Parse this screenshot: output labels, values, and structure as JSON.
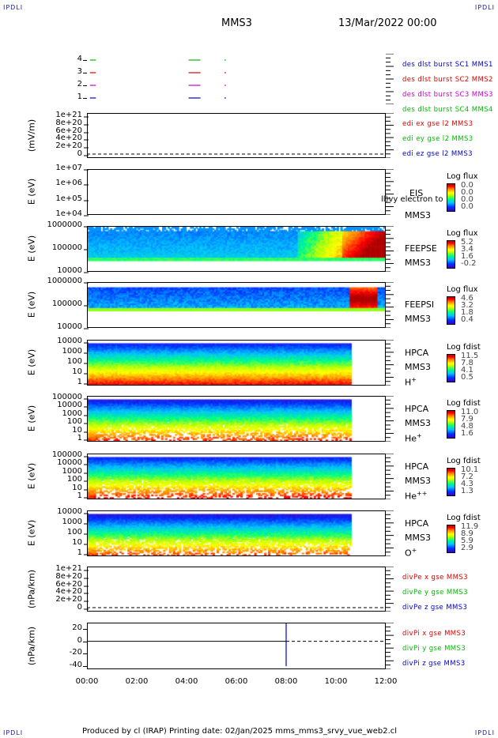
{
  "corners": {
    "tl": "IPDLI",
    "tr": "IPDLI",
    "bl": "IPDLI",
    "br": "IPDLI"
  },
  "header": {
    "mission": "MMS3",
    "date": "13/Mar/2022 00:00"
  },
  "footer": {
    "text": "Produced by cl (IRAP)   Printing date: 02/Jan/2025   mms_mms3_srvy_vue_web2.cl"
  },
  "colors": {
    "red": "#dd0000",
    "green": "#00bb00",
    "blue": "#0000cc",
    "magenta": "#cc00cc"
  },
  "chart_data": [
    {
      "type": "line",
      "panel": "burst",
      "ylim": [
        0.5,
        4.5
      ],
      "yticks": [
        "1",
        "2",
        "3",
        "4"
      ],
      "series": [
        {
          "name": "des dlst burst SC1 MMS1",
          "color": "#0000cc",
          "level": 1
        },
        {
          "name": "des dlst burst SC2 MMS2",
          "color": "#dd0000",
          "level": 3
        },
        {
          "name": "des dlst burst SC3 MMS3",
          "color": "#cc00cc",
          "level": 2
        },
        {
          "name": "des dlst burst SC4 MMS4",
          "color": "#00bb00",
          "level": 4
        }
      ]
    },
    {
      "type": "line",
      "panel": "edi",
      "ylabel": "(mV/m)",
      "yticks": [
        "1e+21",
        "8e+20",
        "6e+20",
        "4e+20",
        "2e+20",
        "0"
      ],
      "series": [
        {
          "name": "edi ex gse l2 MMS3",
          "color": "#dd0000"
        },
        {
          "name": "edi ey gse l2 MMS3",
          "color": "#00bb00"
        },
        {
          "name": "edi ez gse l2 MMS3",
          "color": "#0000cc"
        }
      ]
    },
    {
      "type": "heatmap",
      "panel": "eis",
      "ylabel": "E (eV)",
      "yticks": [
        "1e+07",
        "1e+06",
        "1e+05",
        "1e+04"
      ],
      "instrument": [
        "EIS",
        "MMS3"
      ],
      "overlay_text": "ll)vy electron to",
      "colorbar": {
        "title": "Log flux",
        "values": [
          "0.0",
          "0.0",
          "0.0",
          "0.0"
        ]
      }
    },
    {
      "type": "heatmap",
      "panel": "feepse",
      "ylabel": "E (eV)",
      "yticks": [
        "1000000",
        "100000",
        "10000"
      ],
      "instrument": [
        "FEEPSE",
        "MMS3"
      ],
      "colorbar": {
        "title": "Log flux",
        "values": [
          "5.2",
          "3.4",
          "1.6",
          "-0.2"
        ]
      }
    },
    {
      "type": "heatmap",
      "panel": "feepsi",
      "ylabel": "E (eV)",
      "yticks": [
        "1000000",
        "100000",
        "10000"
      ],
      "instrument": [
        "FEEPSI",
        "MMS3"
      ],
      "colorbar": {
        "title": "Log flux",
        "values": [
          "4.6",
          "3.2",
          "1.8",
          "0.4"
        ]
      }
    },
    {
      "type": "heatmap",
      "panel": "hpca_h",
      "ylabel": "E (eV)",
      "yticks": [
        "10000",
        "1000",
        "100",
        "10",
        "1"
      ],
      "instrument": [
        "HPCA",
        "MMS3",
        "H+"
      ],
      "colorbar": {
        "title": "Log fdist",
        "values": [
          "11.5",
          "7.8",
          "4.1",
          "0.5"
        ]
      }
    },
    {
      "type": "heatmap",
      "panel": "hpca_he",
      "ylabel": "E (eV)",
      "yticks": [
        "100000",
        "10000",
        "1000",
        "100",
        "10",
        "1"
      ],
      "instrument": [
        "HPCA",
        "MMS3",
        "He+"
      ],
      "colorbar": {
        "title": "Log fdist",
        "values": [
          "11.0",
          "7.9",
          "4.8",
          "1.6"
        ]
      }
    },
    {
      "type": "heatmap",
      "panel": "hpca_hepp",
      "ylabel": "E (eV)",
      "yticks": [
        "100000",
        "10000",
        "1000",
        "100",
        "10",
        "1"
      ],
      "instrument": [
        "HPCA",
        "MMS3",
        "He++"
      ],
      "colorbar": {
        "title": "Log fdist",
        "values": [
          "10.1",
          "7.2",
          "4.3",
          "1.3"
        ]
      }
    },
    {
      "type": "heatmap",
      "panel": "hpca_o",
      "ylabel": "E (eV)",
      "yticks": [
        "10000",
        "1000",
        "100",
        "10",
        "1"
      ],
      "instrument": [
        "HPCA",
        "MMS3",
        "O+"
      ],
      "colorbar": {
        "title": "Log fdist",
        "values": [
          "11.9",
          "8.9",
          "5.9",
          "2.9"
        ]
      }
    },
    {
      "type": "line",
      "panel": "divpe",
      "ylabel": "(nPa/km)",
      "yticks": [
        "1e+21",
        "8e+20",
        "6e+20",
        "4e+20",
        "2e+20",
        "0"
      ],
      "series": [
        {
          "name": "divPe x gse MMS3",
          "color": "#dd0000"
        },
        {
          "name": "divPe y gse MMS3",
          "color": "#00bb00"
        },
        {
          "name": "divPe z gse MMS3",
          "color": "#0000cc"
        }
      ]
    },
    {
      "type": "line",
      "panel": "divpi",
      "ylabel": "(nPa/km)",
      "ylim": [
        -45,
        30
      ],
      "yticks": [
        "20",
        "0",
        "-20",
        "-40"
      ],
      "series": [
        {
          "name": "divPi x gse MMS3",
          "color": "#dd0000"
        },
        {
          "name": "divPi y gse MMS3",
          "color": "#00bb00"
        },
        {
          "name": "divPi z gse MMS3",
          "color": "#0000cc",
          "spike_time": "08:00",
          "spike_range": [
            -40,
            30
          ]
        }
      ]
    }
  ],
  "xaxis": {
    "ticks": [
      "00:00",
      "02:00",
      "04:00",
      "06:00",
      "08:00",
      "10:00",
      "12:00"
    ]
  }
}
